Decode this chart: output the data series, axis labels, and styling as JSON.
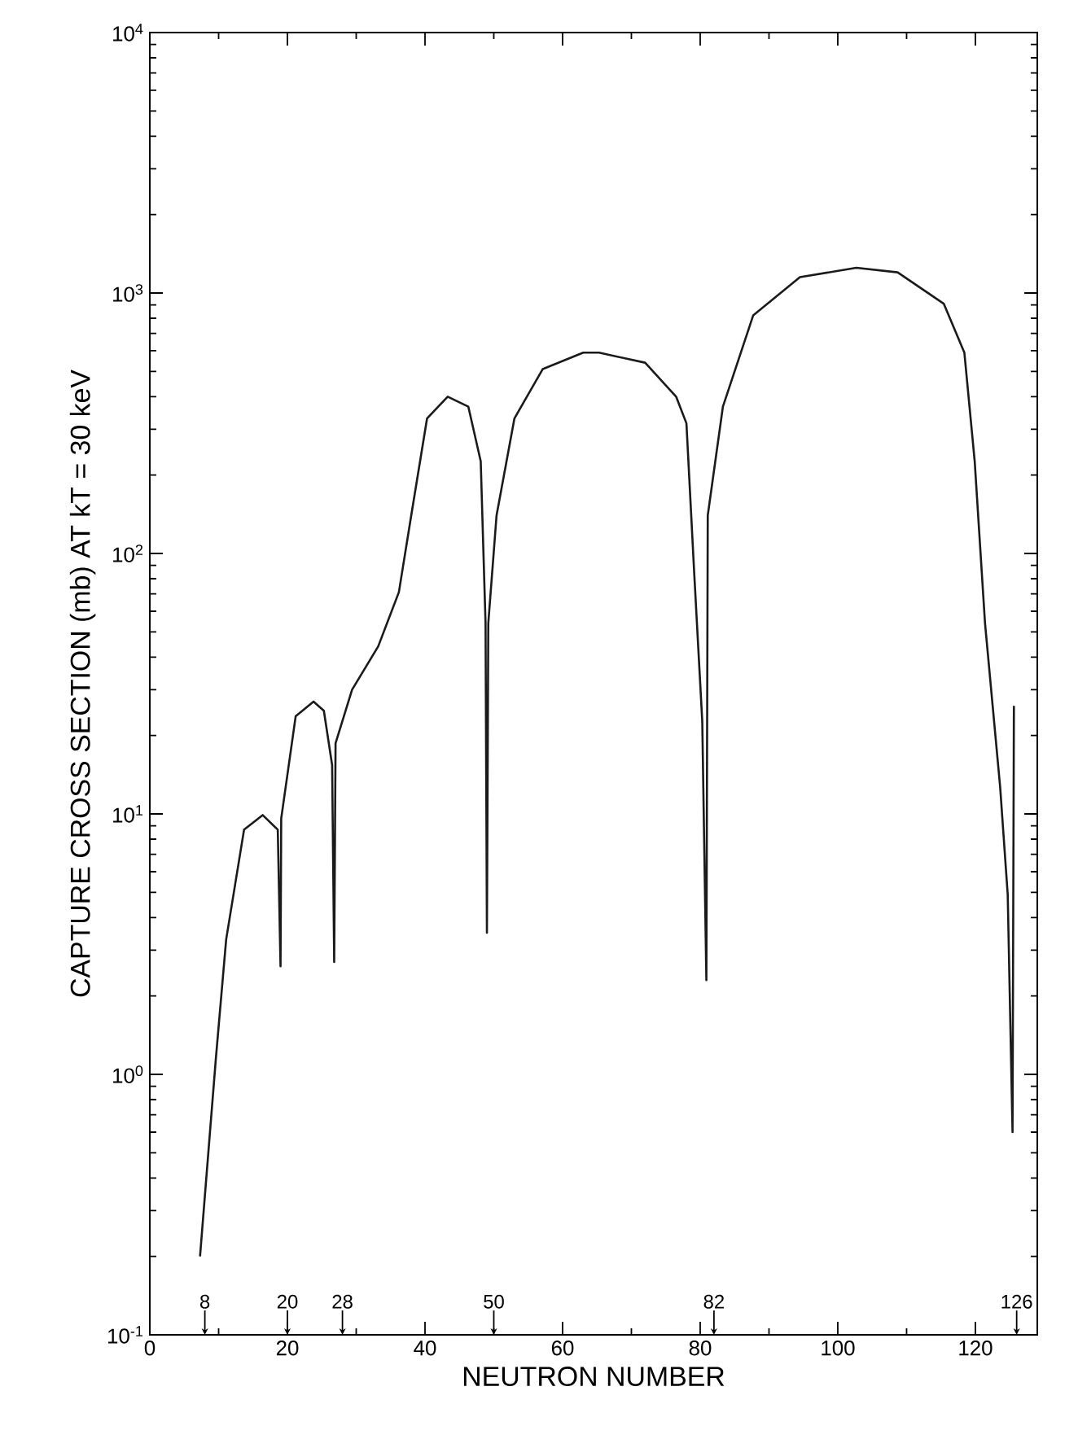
{
  "chart_data": {
    "type": "line",
    "xlabel": "NEUTRON NUMBER",
    "ylabel": "CAPTURE CROSS SECTION (mb) AT kT = 30 keV",
    "log": "y",
    "xlim": [
      0,
      129
    ],
    "ylim": [
      0.1,
      10000
    ],
    "xticks": [
      0,
      20,
      40,
      60,
      80,
      100,
      120
    ],
    "yticks": [
      {
        "value": 0.1,
        "label": "10$^{-1}$"
      },
      {
        "value": 1,
        "label": "10$^{0}$"
      },
      {
        "value": 10,
        "label": "10$^{1}$"
      },
      {
        "value": 100,
        "label": "10$^{2}$"
      },
      {
        "value": 1000,
        "label": "10$^{3}$"
      },
      {
        "value": 10000,
        "label": "10$^{4}$"
      }
    ],
    "grid": false,
    "marker": "none",
    "line_style": "solid",
    "series": [
      {
        "color": "#1a1a1a",
        "x": [
          7.3,
          9.6,
          11.1,
          13.7,
          16.4,
          18.6,
          19.0,
          19.1,
          21.2,
          23.8,
          25.3,
          26.5,
          26.8,
          27.0,
          29.4,
          33.2,
          36.2,
          38.0,
          40.3,
          43.3,
          46.3,
          48.1,
          48.8,
          49.0,
          49.2,
          50.4,
          53,
          57.1,
          63,
          65.3,
          72,
          76.5,
          78,
          79.1,
          80.3,
          80.9,
          81.1,
          83.3,
          87.7,
          94.5,
          102.7,
          108.7,
          115.4,
          118.4,
          119.9,
          121.4,
          123.6,
          124.7,
          125.4,
          125.6
        ],
        "values": [
          0.2,
          1.15,
          3.3,
          8.7,
          9.9,
          8.7,
          2.6,
          9.6,
          23.7,
          27,
          24.9,
          15.4,
          2.7,
          18.7,
          30,
          44,
          71,
          140,
          330,
          400,
          366,
          226,
          54,
          3.5,
          54,
          140,
          330,
          510,
          590,
          590,
          540,
          400,
          316,
          87,
          22.7,
          2.3,
          140,
          366,
          820,
          1150,
          1250,
          1200,
          910,
          590,
          226,
          54,
          12.7,
          4.9,
          0.6,
          26
        ]
      }
    ],
    "annotations": [
      {
        "text": "8",
        "x": 8,
        "y": 0.1
      },
      {
        "text": "20",
        "x": 20,
        "y": 0.1
      },
      {
        "text": "28",
        "x": 28,
        "y": 0.1
      },
      {
        "text": "50",
        "x": 50,
        "y": 0.1
      },
      {
        "text": "82",
        "x": 82,
        "y": 0.1
      },
      {
        "text": "126",
        "x": 126,
        "y": 0.1
      }
    ]
  }
}
